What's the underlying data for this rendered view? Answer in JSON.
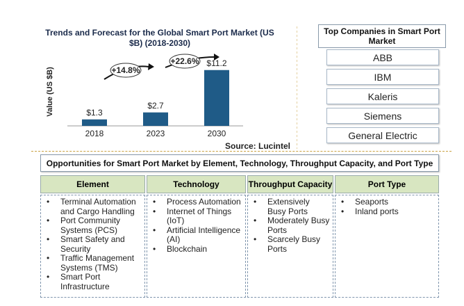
{
  "chart_data": {
    "type": "bar",
    "title": "Trends and Forecast for the Global Smart Port Market (US $B) (2018-2030)",
    "y_label": "Value (US $B)",
    "categories": [
      "2018",
      "2023",
      "2030"
    ],
    "values": [
      1.3,
      2.7,
      11.2
    ],
    "value_labels": [
      "$1.3",
      "$2.7",
      "$11.2"
    ],
    "color": "#1f5b87",
    "ylim": [
      0,
      12
    ],
    "annotations": [
      "+14.8%",
      "+22.6%"
    ],
    "source": "Source: Lucintel"
  },
  "top_companies": {
    "title": "Top Companies in Smart Port Market",
    "items": [
      "ABB",
      "IBM",
      "Kaleris",
      "Siemens",
      "General Electric"
    ]
  },
  "opportunities": {
    "title": "Opportunities for Smart Port Market by Element, Technology, Throughput Capacity, and Port Type",
    "columns": [
      {
        "header": "Element",
        "items": [
          "Terminal Automation and Cargo Handling",
          "Port Community Systems (PCS)",
          "Smart Safety and Security",
          "Traffic Management Systems (TMS)",
          "Smart Port Infrastructure"
        ]
      },
      {
        "header": "Technology",
        "items": [
          "Process Automation",
          "Internet of Things (IoT)",
          "Artificial Intelligence (AI)",
          "Blockchain"
        ]
      },
      {
        "header": "Throughput Capacity",
        "items": [
          "Extensively Busy Ports",
          "Moderately Busy Ports",
          "Scarcely Busy Ports"
        ]
      },
      {
        "header": "Port Type",
        "items": [
          "Seaports",
          "Inland ports"
        ]
      }
    ]
  }
}
